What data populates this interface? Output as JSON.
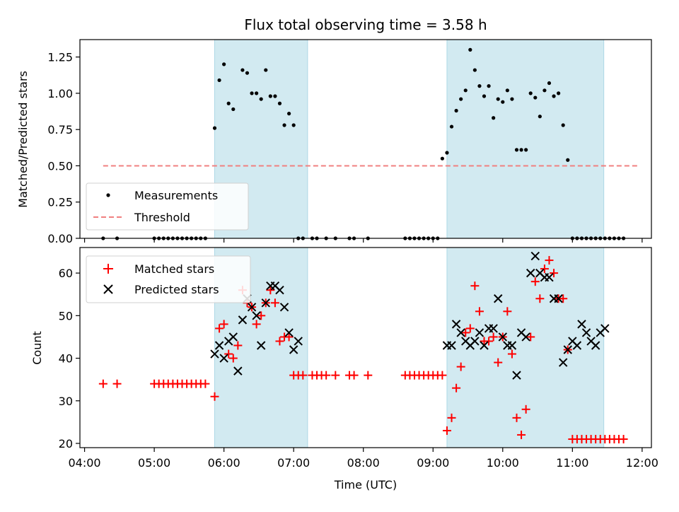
{
  "title": "Flux total observing time = 3.58 h",
  "colors": {
    "shade": "#add8e6",
    "measurement": "#000000",
    "threshold": "#f08080",
    "matched": "#ff0000",
    "predicted": "#000000"
  },
  "chart_data": [
    {
      "type": "scatter",
      "panel": "top",
      "title": "Flux total observing time = 3.58 h",
      "ylabel": "Matched/Predicted stars",
      "xlabel": "",
      "xlim": [
        "03:56",
        "12:08"
      ],
      "ylim": [
        0,
        1.37
      ],
      "yticks": [
        "0.00",
        "0.25",
        "0.50",
        "0.75",
        "1.00",
        "1.25"
      ],
      "shaded_intervals": [
        [
          "05:52",
          "07:12"
        ],
        [
          "09:12",
          "11:27"
        ]
      ],
      "legend": {
        "position": "lower-left",
        "entries": [
          "Measurements",
          "Threshold"
        ]
      },
      "series": [
        {
          "name": "Measurements",
          "marker": "dot",
          "x": [
            "04:16",
            "04:28",
            "05:00",
            "05:04",
            "05:08",
            "05:12",
            "05:16",
            "05:20",
            "05:24",
            "05:28",
            "05:32",
            "05:36",
            "05:40",
            "05:44",
            "05:52",
            "05:56",
            "06:00",
            "06:04",
            "06:08",
            "06:16",
            "06:20",
            "06:24",
            "06:28",
            "06:32",
            "06:36",
            "06:40",
            "06:44",
            "06:48",
            "06:52",
            "06:56",
            "07:00",
            "07:04",
            "07:08",
            "07:16",
            "07:20",
            "07:28",
            "07:36",
            "07:48",
            "07:52",
            "08:04",
            "08:36",
            "08:40",
            "08:44",
            "08:48",
            "08:52",
            "08:56",
            "09:00",
            "09:04",
            "09:08",
            "09:12",
            "09:16",
            "09:20",
            "09:24",
            "09:28",
            "09:32",
            "09:36",
            "09:40",
            "09:44",
            "09:48",
            "09:52",
            "09:56",
            "10:00",
            "10:04",
            "10:08",
            "10:12",
            "10:16",
            "10:20",
            "10:24",
            "10:28",
            "10:32",
            "10:36",
            "10:40",
            "10:44",
            "10:48",
            "10:52",
            "10:56",
            "11:00",
            "11:04",
            "11:08",
            "11:12",
            "11:16",
            "11:20",
            "11:24",
            "11:28",
            "11:32",
            "11:36",
            "11:40",
            "11:44"
          ],
          "y": [
            0,
            0,
            0,
            0,
            0,
            0,
            0,
            0,
            0,
            0,
            0,
            0,
            0,
            0,
            0.76,
            1.09,
            1.2,
            0.93,
            0.89,
            1.16,
            1.14,
            1.0,
            1.0,
            0.96,
            1.16,
            0.98,
            0.98,
            0.93,
            0.78,
            0.86,
            0.78,
            0,
            0,
            0,
            0,
            0,
            0,
            0,
            0,
            0,
            0,
            0,
            0,
            0,
            0,
            0,
            0,
            0,
            0.55,
            0.59,
            0.77,
            0.88,
            0.96,
            1.02,
            1.3,
            1.16,
            1.05,
            0.98,
            1.05,
            0.83,
            0.96,
            0.94,
            1.02,
            0.96,
            0.61,
            0.61,
            0.61,
            1.0,
            0.97,
            0.84,
            1.02,
            1.07,
            0.98,
            1.0,
            0.78,
            0.54,
            0,
            0,
            0,
            0,
            0,
            0,
            0,
            0,
            0,
            0,
            0,
            0
          ]
        },
        {
          "name": "Threshold",
          "style": "dashed",
          "x": [
            "04:16",
            "11:56"
          ],
          "y": [
            0.5,
            0.5
          ]
        }
      ]
    },
    {
      "type": "scatter",
      "panel": "bottom",
      "ylabel": "Count",
      "xlabel": "Time (UTC)",
      "xlim": [
        "03:56",
        "12:08"
      ],
      "ylim": [
        19,
        66
      ],
      "yticks": [
        "20",
        "30",
        "40",
        "50",
        "60"
      ],
      "xticks": [
        "04:00",
        "05:00",
        "06:00",
        "07:00",
        "08:00",
        "09:00",
        "10:00",
        "11:00",
        "12:00"
      ],
      "shaded_intervals": [
        [
          "05:52",
          "07:12"
        ],
        [
          "09:12",
          "11:27"
        ]
      ],
      "legend": {
        "position": "upper-left",
        "entries": [
          "Matched stars",
          "Predicted stars"
        ]
      },
      "series": [
        {
          "name": "Matched stars",
          "marker": "plus",
          "x": [
            "04:16",
            "04:28",
            "05:00",
            "05:04",
            "05:08",
            "05:12",
            "05:16",
            "05:20",
            "05:24",
            "05:28",
            "05:32",
            "05:36",
            "05:40",
            "05:44",
            "05:52",
            "05:56",
            "06:00",
            "06:04",
            "06:08",
            "06:12",
            "06:16",
            "06:20",
            "06:24",
            "06:28",
            "06:32",
            "06:36",
            "06:40",
            "06:44",
            "06:48",
            "06:52",
            "06:56",
            "07:00",
            "07:04",
            "07:08",
            "07:16",
            "07:20",
            "07:24",
            "07:28",
            "07:36",
            "07:48",
            "07:52",
            "08:04",
            "08:36",
            "08:40",
            "08:44",
            "08:48",
            "08:52",
            "08:56",
            "09:00",
            "09:04",
            "09:08",
            "09:12",
            "09:16",
            "09:20",
            "09:24",
            "09:28",
            "09:32",
            "09:36",
            "09:40",
            "09:44",
            "09:48",
            "09:52",
            "09:56",
            "10:00",
            "10:04",
            "10:08",
            "10:12",
            "10:16",
            "10:20",
            "10:24",
            "10:28",
            "10:32",
            "10:36",
            "10:40",
            "10:44",
            "10:48",
            "10:52",
            "10:56",
            "11:00",
            "11:04",
            "11:08",
            "11:12",
            "11:16",
            "11:20",
            "11:24",
            "11:28",
            "11:32",
            "11:36",
            "11:40",
            "11:44"
          ],
          "y": [
            34,
            34,
            34,
            34,
            34,
            34,
            34,
            34,
            34,
            34,
            34,
            34,
            34,
            34,
            31,
            47,
            48,
            41,
            40,
            43,
            56,
            53,
            52,
            48,
            50,
            53,
            56,
            53,
            44,
            45,
            45,
            36,
            36,
            36,
            36,
            36,
            36,
            36,
            36,
            36,
            36,
            36,
            36,
            36,
            36,
            36,
            36,
            36,
            36,
            36,
            36,
            23,
            26,
            33,
            38,
            46,
            47,
            57,
            51,
            44,
            44,
            45,
            39,
            45,
            51,
            41,
            26,
            22,
            28,
            45,
            58,
            54,
            61,
            63,
            60,
            54,
            54,
            42,
            21,
            21,
            21,
            21,
            21,
            21,
            21,
            21,
            21,
            21,
            21,
            21
          ]
        },
        {
          "name": "Predicted stars",
          "marker": "x",
          "x": [
            "05:52",
            "05:56",
            "06:00",
            "06:04",
            "06:08",
            "06:12",
            "06:16",
            "06:20",
            "06:24",
            "06:28",
            "06:32",
            "06:36",
            "06:40",
            "06:44",
            "06:48",
            "06:52",
            "06:56",
            "07:00",
            "07:04",
            "09:12",
            "09:16",
            "09:20",
            "09:24",
            "09:28",
            "09:32",
            "09:36",
            "09:40",
            "09:44",
            "09:48",
            "09:52",
            "09:56",
            "10:00",
            "10:04",
            "10:08",
            "10:12",
            "10:16",
            "10:20",
            "10:24",
            "10:28",
            "10:32",
            "10:36",
            "10:40",
            "10:44",
            "10:48",
            "10:52",
            "10:56",
            "11:00",
            "11:04",
            "11:08",
            "11:12",
            "11:16",
            "11:20",
            "11:24",
            "11:28"
          ],
          "y": [
            41,
            43,
            40,
            44,
            45,
            37,
            49,
            54,
            52,
            50,
            43,
            53,
            57,
            57,
            56,
            52,
            46,
            42,
            44,
            43,
            43,
            48,
            46,
            44,
            43,
            44,
            46,
            43,
            47,
            47,
            54,
            45,
            43,
            43,
            36,
            46,
            45,
            60,
            64,
            60,
            59,
            59,
            54,
            54,
            39,
            42,
            44,
            43,
            48,
            46,
            44,
            43,
            46,
            47
          ]
        }
      ]
    }
  ]
}
